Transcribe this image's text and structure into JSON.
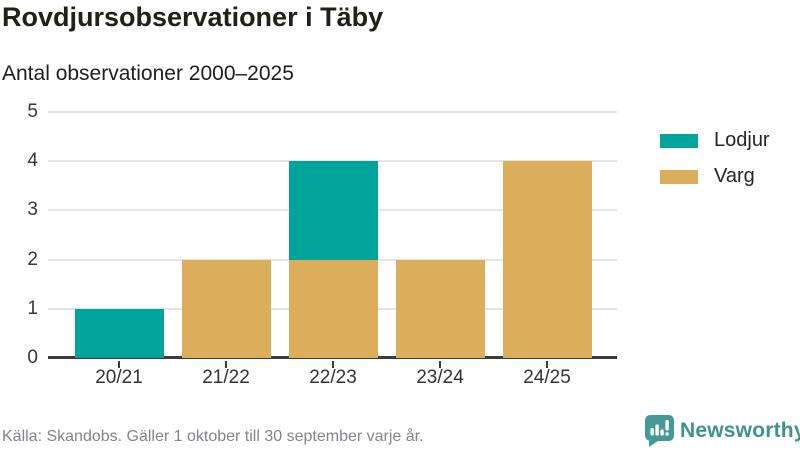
{
  "header": {
    "title": "Rovdjursobservationer i Täby",
    "subtitle": "Antal observationer 2000–2025"
  },
  "chart_data": {
    "type": "bar",
    "stacked": true,
    "title": "Rovdjursobservationer i Täby",
    "subtitle": "Antal observationer 2000–2025",
    "categories": [
      "20/21",
      "21/22",
      "22/23",
      "23/24",
      "24/25"
    ],
    "series": [
      {
        "name": "Lodjur",
        "color": "#00a49b",
        "values": [
          1,
          0,
          2,
          0,
          0
        ]
      },
      {
        "name": "Varg",
        "color": "#dbae5b",
        "values": [
          0,
          2,
          2,
          2,
          4
        ]
      }
    ],
    "stack_bottom_to_top": [
      "Varg",
      "Lodjur"
    ],
    "totals": [
      1,
      2,
      4,
      2,
      4
    ],
    "xlabel": "",
    "ylabel": "",
    "ylim": [
      0,
      5
    ],
    "yticks": [
      0,
      1,
      2,
      3,
      4,
      5
    ],
    "grid": true,
    "legend_position": "right"
  },
  "legend": {
    "items": [
      {
        "label": "Lodjur",
        "color": "#00a49b"
      },
      {
        "label": "Varg",
        "color": "#dbae5b"
      }
    ]
  },
  "footer": {
    "source": "Källa: Skandobs. Gäller 1 oktober till 30 september varje år.",
    "brand": "Newsworthy"
  },
  "colors": {
    "lodjur_teal": "#00a49b",
    "varg_tan": "#dbae5b",
    "brand_teal": "#3f938e",
    "axis_dark": "#3b3b3b",
    "gridline": "#e5e5e5",
    "source_gray": "#84848c"
  }
}
